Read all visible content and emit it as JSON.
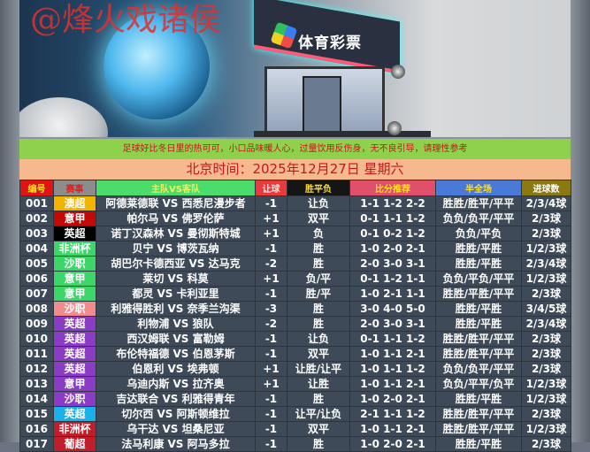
{
  "banner": {
    "watermark": "@烽火戏诸侯",
    "sign": "体育彩票"
  },
  "notice": "足球好比冬日里的热可可，小口品味暖人心，过量饮用反伤身，无不良引导，请理性参考",
  "date_line": "北京时间：2025年12月27日  星期六",
  "headers": [
    {
      "label": "编号",
      "bg": "#e01414",
      "color": "#ffe020"
    },
    {
      "label": "赛事",
      "bg": "#8c8c8c",
      "color": "#e02020"
    },
    {
      "label": "主队VS客队",
      "bg": "#4cdc6c",
      "color": "#f0f060"
    },
    {
      "label": "让球",
      "bg": "#e83a3a",
      "color": "#ffe0e0"
    },
    {
      "label": "胜平负",
      "bg": "#151515",
      "color": "#ffe020"
    },
    {
      "label": "比分推荐",
      "bg": "#e0506a",
      "color": "#ffe020"
    },
    {
      "label": "半全场",
      "bg": "#4a7ad8",
      "color": "#ffe020"
    },
    {
      "label": "进球数",
      "bg": "#8a7810",
      "color": "#ffffff"
    }
  ],
  "rows": [
    {
      "no": "001",
      "league": "澳超",
      "league_bg": "#f0b400",
      "match": "阿德莱德联 VS 西悉尼漫步者",
      "handicap": "-1",
      "result": "让负",
      "score": "1-1 1-2 2-2",
      "half_full": "胜胜/胜平/平平",
      "goals": "2/3/4球"
    },
    {
      "no": "002",
      "league": "意甲",
      "league_bg": "#c40808",
      "match": "帕尔马 VS 佛罗伦萨",
      "handicap": "+1",
      "result": "双平",
      "score": "0-1 1-1 1-2",
      "half_full": "负负/负平/平平",
      "goals": "2/3球"
    },
    {
      "no": "003",
      "league": "英超",
      "league_bg": "#000000",
      "match": "诺丁汉森林 VS 曼彻斯特城",
      "handicap": "+1",
      "result": "负",
      "score": "0-1 0-2 1-2",
      "half_full": "负负/平负",
      "goals": "2/3球"
    },
    {
      "no": "004",
      "league": "非洲杯",
      "league_bg": "#3cd66a",
      "match": "贝宁 VS 博茨瓦纳",
      "handicap": "-1",
      "result": "胜",
      "score": "1-0 2-0 2-1",
      "half_full": "胜胜/平胜",
      "goals": "1/2/3球"
    },
    {
      "no": "005",
      "league": "沙职",
      "league_bg": "#3cd66a",
      "match": "胡巴尔卡德西亚 VS 达马克",
      "handicap": "-2",
      "result": "胜",
      "score": "2-0 3-0 3-1",
      "half_full": "胜胜/平胜",
      "goals": "2/3/4球"
    },
    {
      "no": "006",
      "league": "意甲",
      "league_bg": "#3cd66a",
      "match": "莱切 VS 科莫",
      "handicap": "+1",
      "result": "负/平",
      "score": "0-1 1-2 1-1",
      "half_full": "负负/平负/平平",
      "goals": "1/2/3球"
    },
    {
      "no": "007",
      "league": "意甲",
      "league_bg": "#3cd66a",
      "match": "都灵 VS 卡利亚里",
      "handicap": "-1",
      "result": "胜/平",
      "score": "1-0 2-1 1-1",
      "half_full": "胜胜/平胜/平平",
      "goals": "2/3球"
    },
    {
      "no": "008",
      "league": "沙职",
      "league_bg": "#f08c8c",
      "match": "利雅得胜利 VS 奈季兰沟渠",
      "handicap": "-3",
      "result": "胜",
      "score": "3-0 4-0 5-0",
      "half_full": "胜胜/平胜",
      "goals": "3/4/5球"
    },
    {
      "no": "009",
      "league": "英超",
      "league_bg": "#8a3cc4",
      "match": "利物浦 VS 狼队",
      "handicap": "-2",
      "result": "胜",
      "score": "2-0 3-0 3-1",
      "half_full": "胜胜/平胜",
      "goals": "2/3/4球"
    },
    {
      "no": "010",
      "league": "英超",
      "league_bg": "#8a3cc4",
      "match": "西汉姆联 VS 富勒姆",
      "handicap": "-1",
      "result": "让负",
      "score": "0-1 1-1 1-2",
      "half_full": "胜胜/胜平/平平",
      "goals": "2/3球"
    },
    {
      "no": "011",
      "league": "英超",
      "league_bg": "#8a3cc4",
      "match": "布伦特福德 VS 伯恩茅斯",
      "handicap": "-1",
      "result": "双平",
      "score": "1-0 1-1 2-1",
      "half_full": "胜胜/胜平/平平",
      "goals": "2/3球"
    },
    {
      "no": "012",
      "league": "英超",
      "league_bg": "#8a3cc4",
      "match": "伯恩利 VS 埃弗顿",
      "handicap": "+1",
      "result": "让胜/让平",
      "score": "1-0 1-1 1-2",
      "half_full": "负负/负平/平平",
      "goals": "2/3球"
    },
    {
      "no": "013",
      "league": "意甲",
      "league_bg": "#8a3cc4",
      "match": "乌迪内斯 VS 拉齐奥",
      "handicap": "+1",
      "result": "让胜",
      "score": "1-0 1-1 2-1",
      "half_full": "负负/平平/负平",
      "goals": "1/2/3球"
    },
    {
      "no": "014",
      "league": "沙职",
      "league_bg": "#8a3cc4",
      "match": "吉达联合 VS 利雅得青年",
      "handicap": "-1",
      "result": "胜",
      "score": "1-0 2-0 2-1",
      "half_full": "胜胜/平胜",
      "goals": "1/2/3球"
    },
    {
      "no": "015",
      "league": "英超",
      "league_bg": "#1ab0ea",
      "match": "切尔西 VS 阿斯顿维拉",
      "handicap": "-1",
      "result": "让平/让负",
      "score": "2-1 1-1 1-2",
      "half_full": "胜胜/胜平/平平",
      "goals": "2/3球"
    },
    {
      "no": "016",
      "league": "非洲杯",
      "league_bg": "#c01e2a",
      "match": "乌干达 VS 坦桑尼亚",
      "handicap": "-1",
      "result": "双平",
      "score": "1-0 1-1 2-1",
      "half_full": "胜胜/胜平/平平",
      "goals": "1/2/3球"
    },
    {
      "no": "017",
      "league": "葡超",
      "league_bg": "#c01e2a",
      "match": "法马利康 VS 阿马多拉",
      "handicap": "-1",
      "result": "胜",
      "score": "1-0 2-0 2-1",
      "half_full": "胜胜/平胜",
      "goals": "2/3球"
    }
  ]
}
